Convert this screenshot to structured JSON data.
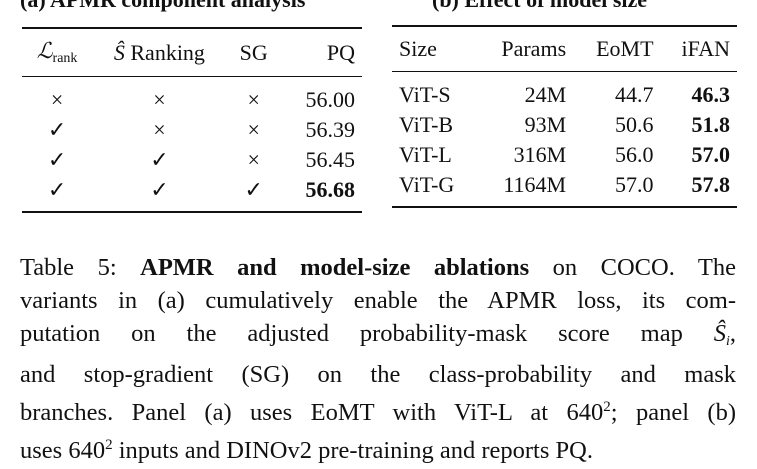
{
  "table_a": {
    "title": "(a) APMR component analysis",
    "headers": [
      {
        "symbol": "ℒ",
        "subscript": "rank"
      },
      {
        "symbol": "Ŝ",
        "text": " Ranking"
      },
      "SG",
      "PQ"
    ],
    "rows": [
      [
        "×",
        "×",
        "×",
        "56.00"
      ],
      [
        "✓",
        "×",
        "×",
        "56.39"
      ],
      [
        "✓",
        "✓",
        "×",
        "56.45"
      ],
      [
        "✓",
        "✓",
        "✓",
        "56.68"
      ]
    ]
  },
  "table_b": {
    "title": "(b) Effect of model size",
    "headers": [
      "Size",
      "Params",
      "EoMT",
      "iFAN"
    ],
    "rows": [
      [
        "ViT-S",
        "24M",
        "44.7",
        "46.3"
      ],
      [
        "ViT-B",
        "93M",
        "50.6",
        "51.8"
      ],
      [
        "ViT-L",
        "316M",
        "56.0",
        "57.0"
      ],
      [
        "ViT-G",
        "1164M",
        "57.0",
        "57.8"
      ]
    ]
  },
  "caption": {
    "lines": [
      [
        "Table 5: ",
        "APMR and model-size ablations",
        " on COCO. The"
      ],
      [
        "variants in (a) cumulatively enable the APMR loss, its com-"
      ],
      [
        "putation on the adjusted probability-mask score map ",
        "Ŝ",
        "i",
        ","
      ],
      [
        "and stop-gradient (SG) on the class-probability and mask"
      ],
      [
        "branches. Panel (a) uses EoMT with ViT-L at ",
        "640",
        "2",
        "; panel (b)"
      ],
      [
        "uses ",
        "640",
        "2",
        " inputs and DINOv2 pre-training and reports PQ."
      ]
    ]
  }
}
